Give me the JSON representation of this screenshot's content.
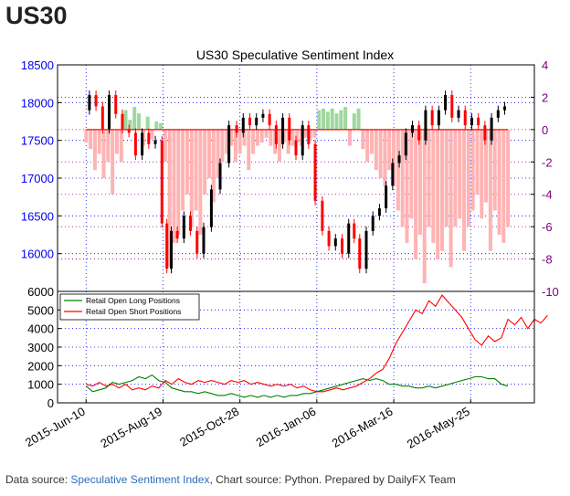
{
  "page": {
    "title": "US30",
    "footer": {
      "prefix": "Data source: ",
      "link": "Speculative Sentiment Index",
      "suffix": ", Chart source: Python. Prepared by DailyFX Team"
    }
  },
  "colors": {
    "price_axis": "#0000ee",
    "ssi_axis": "#800080",
    "long": "#008000",
    "short": "#ff0000",
    "ssi_positive": "#9fd89f",
    "ssi_negative": "#ffb3b3",
    "candle_up": "#000000",
    "candle_down": "#ff0000",
    "grid_blue": "#0000ff",
    "grid_purple": "#800080"
  },
  "chart_data": [
    {
      "type": "candlestick",
      "title": "US30 Speculative Sentiment Index",
      "ylim": [
        15500,
        18500
      ],
      "yticks": [
        16000,
        16500,
        17000,
        17500,
        18000,
        18500
      ],
      "secondary_ylim": [
        -10,
        4
      ],
      "secondary_yticks": [
        -10,
        -8,
        -6,
        -4,
        -2,
        0,
        2,
        4
      ],
      "x_tick_labels": [
        "2015-Jun-10",
        "2015-Aug-19",
        "2015-Oct-28",
        "2016-Jan-06",
        "2016-Mar-16",
        "2016-May-25"
      ],
      "x_ticks_days": [
        0,
        70,
        140,
        210,
        280,
        350
      ],
      "xlim_days": [
        -26,
        408
      ],
      "grid": true,
      "price_close": [
        [
          0,
          17900
        ],
        [
          6,
          18100
        ],
        [
          12,
          17950
        ],
        [
          18,
          17650
        ],
        [
          24,
          18100
        ],
        [
          30,
          17850
        ],
        [
          36,
          17650
        ],
        [
          42,
          17600
        ],
        [
          48,
          17300
        ],
        [
          54,
          17600
        ],
        [
          60,
          17450
        ],
        [
          66,
          17500
        ],
        [
          72,
          16400
        ],
        [
          75,
          15800
        ],
        [
          80,
          16300
        ],
        [
          86,
          16200
        ],
        [
          92,
          16500
        ],
        [
          98,
          16300
        ],
        [
          104,
          16000
        ],
        [
          110,
          16350
        ],
        [
          118,
          16850
        ],
        [
          126,
          17200
        ],
        [
          134,
          17700
        ],
        [
          140,
          17600
        ],
        [
          146,
          17800
        ],
        [
          152,
          17700
        ],
        [
          158,
          17800
        ],
        [
          164,
          17850
        ],
        [
          170,
          17700
        ],
        [
          176,
          17450
        ],
        [
          182,
          17800
        ],
        [
          188,
          17500
        ],
        [
          194,
          17300
        ],
        [
          200,
          17700
        ],
        [
          205,
          17450
        ],
        [
          212,
          16700
        ],
        [
          218,
          16300
        ],
        [
          224,
          16100
        ],
        [
          230,
          16200
        ],
        [
          236,
          16000
        ],
        [
          242,
          16400
        ],
        [
          246,
          16200
        ],
        [
          252,
          15800
        ],
        [
          258,
          16300
        ],
        [
          264,
          16500
        ],
        [
          270,
          16600
        ],
        [
          276,
          16900
        ],
        [
          282,
          17200
        ],
        [
          288,
          17300
        ],
        [
          294,
          17600
        ],
        [
          300,
          17700
        ],
        [
          306,
          17500
        ],
        [
          312,
          17900
        ],
        [
          318,
          17700
        ],
        [
          324,
          17900
        ],
        [
          330,
          18100
        ],
        [
          336,
          17800
        ],
        [
          342,
          17900
        ],
        [
          348,
          17700
        ],
        [
          354,
          17800
        ],
        [
          360,
          17700
        ],
        [
          366,
          17500
        ],
        [
          372,
          17800
        ],
        [
          378,
          17900
        ],
        [
          384,
          17950
        ]
      ],
      "ssi": [
        [
          0,
          -0.8
        ],
        [
          4,
          -1.2
        ],
        [
          8,
          -2.5
        ],
        [
          12,
          -1.5
        ],
        [
          16,
          -3.0
        ],
        [
          20,
          -2.0
        ],
        [
          24,
          -4.0
        ],
        [
          28,
          -1.5
        ],
        [
          32,
          -2.0
        ],
        [
          36,
          1.2
        ],
        [
          40,
          0.6
        ],
        [
          44,
          1.4
        ],
        [
          48,
          1.0
        ],
        [
          52,
          -1.0
        ],
        [
          56,
          0.8
        ],
        [
          60,
          -0.6
        ],
        [
          64,
          0.5
        ],
        [
          68,
          0.4
        ],
        [
          72,
          -2.0
        ],
        [
          76,
          -8.5
        ],
        [
          80,
          -7.0
        ],
        [
          84,
          -6.5
        ],
        [
          88,
          -5.0
        ],
        [
          92,
          -4.0
        ],
        [
          96,
          -6.0
        ],
        [
          100,
          -5.0
        ],
        [
          104,
          -6.5
        ],
        [
          108,
          -4.0
        ],
        [
          112,
          -3.0
        ],
        [
          116,
          -4.5
        ],
        [
          120,
          -3.0
        ],
        [
          124,
          -2.0
        ],
        [
          128,
          -1.5
        ],
        [
          132,
          -1.0
        ],
        [
          136,
          -2.0
        ],
        [
          140,
          -1.5
        ],
        [
          144,
          -1.0
        ],
        [
          148,
          -2.5
        ],
        [
          152,
          -1.5
        ],
        [
          156,
          -1.0
        ],
        [
          160,
          -0.8
        ],
        [
          164,
          -0.5
        ],
        [
          168,
          -1.0
        ],
        [
          172,
          -1.5
        ],
        [
          176,
          -2.0
        ],
        [
          180,
          -0.8
        ],
        [
          184,
          -1.5
        ],
        [
          188,
          -1.0
        ],
        [
          192,
          -0.8
        ],
        [
          196,
          -1.0
        ],
        [
          200,
          -0.5
        ],
        [
          204,
          -0.7
        ],
        [
          208,
          -0.5
        ],
        [
          212,
          1.2
        ],
        [
          216,
          1.3
        ],
        [
          220,
          1.1
        ],
        [
          224,
          1.3
        ],
        [
          228,
          1.0
        ],
        [
          232,
          1.2
        ],
        [
          236,
          1.4
        ],
        [
          240,
          -1.0
        ],
        [
          244,
          1.0
        ],
        [
          248,
          1.3
        ],
        [
          252,
          -1.2
        ],
        [
          256,
          -2.0
        ],
        [
          260,
          -1.5
        ],
        [
          264,
          -2.5
        ],
        [
          268,
          -3.0
        ],
        [
          272,
          -3.5
        ],
        [
          276,
          -2.5
        ],
        [
          280,
          -3.5
        ],
        [
          284,
          -5.0
        ],
        [
          288,
          -6.0
        ],
        [
          292,
          -7.0
        ],
        [
          296,
          -5.5
        ],
        [
          300,
          -8.0
        ],
        [
          304,
          -6.5
        ],
        [
          308,
          -9.5
        ],
        [
          312,
          -6.0
        ],
        [
          316,
          -7.0
        ],
        [
          320,
          -8.0
        ],
        [
          324,
          -7.5
        ],
        [
          328,
          -6.0
        ],
        [
          332,
          -8.5
        ],
        [
          336,
          -6.0
        ],
        [
          340,
          -5.5
        ],
        [
          344,
          -7.5
        ],
        [
          348,
          -6.0
        ],
        [
          352,
          -5.0
        ],
        [
          356,
          -4.0
        ],
        [
          360,
          -5.5
        ],
        [
          364,
          -4.5
        ],
        [
          368,
          -7.5
        ],
        [
          372,
          -5.0
        ],
        [
          376,
          -6.5
        ],
        [
          380,
          -7.0
        ],
        [
          384,
          -6.0
        ]
      ]
    },
    {
      "type": "line",
      "ylim": [
        0,
        6000
      ],
      "yticks": [
        0,
        1000,
        2000,
        3000,
        4000,
        5000,
        6000
      ],
      "legend": "top-left",
      "series": [
        {
          "name": "Retail Open Long Positions",
          "points": [
            [
              0,
              900
            ],
            [
              6,
              600
            ],
            [
              12,
              700
            ],
            [
              18,
              800
            ],
            [
              24,
              1100
            ],
            [
              30,
              1000
            ],
            [
              36,
              1100
            ],
            [
              42,
              1200
            ],
            [
              48,
              1400
            ],
            [
              54,
              1300
            ],
            [
              60,
              1500
            ],
            [
              66,
              1200
            ],
            [
              72,
              1100
            ],
            [
              78,
              800
            ],
            [
              84,
              700
            ],
            [
              90,
              600
            ],
            [
              96,
              600
            ],
            [
              102,
              500
            ],
            [
              108,
              600
            ],
            [
              114,
              500
            ],
            [
              120,
              400
            ],
            [
              126,
              400
            ],
            [
              132,
              500
            ],
            [
              138,
              400
            ],
            [
              144,
              300
            ],
            [
              150,
              400
            ],
            [
              156,
              300
            ],
            [
              162,
              400
            ],
            [
              168,
              300
            ],
            [
              174,
              400
            ],
            [
              180,
              300
            ],
            [
              186,
              400
            ],
            [
              192,
              400
            ],
            [
              198,
              500
            ],
            [
              204,
              500
            ],
            [
              210,
              600
            ],
            [
              216,
              700
            ],
            [
              222,
              800
            ],
            [
              228,
              900
            ],
            [
              234,
              1000
            ],
            [
              240,
              1100
            ],
            [
              246,
              1200
            ],
            [
              252,
              1300
            ],
            [
              258,
              1200
            ],
            [
              264,
              1300
            ],
            [
              270,
              1200
            ],
            [
              276,
              1000
            ],
            [
              282,
              1000
            ],
            [
              288,
              900
            ],
            [
              294,
              900
            ],
            [
              300,
              800
            ],
            [
              306,
              800
            ],
            [
              312,
              900
            ],
            [
              318,
              800
            ],
            [
              324,
              900
            ],
            [
              330,
              1000
            ],
            [
              336,
              1100
            ],
            [
              342,
              1200
            ],
            [
              348,
              1300
            ],
            [
              354,
              1400
            ],
            [
              360,
              1400
            ],
            [
              366,
              1300
            ],
            [
              372,
              1300
            ],
            [
              378,
              1000
            ],
            [
              384,
              900
            ]
          ]
        },
        {
          "name": "Retail Open Short Positions",
          "points": [
            [
              0,
              1000
            ],
            [
              6,
              900
            ],
            [
              12,
              1100
            ],
            [
              18,
              900
            ],
            [
              24,
              1000
            ],
            [
              30,
              800
            ],
            [
              36,
              1000
            ],
            [
              42,
              700
            ],
            [
              48,
              800
            ],
            [
              54,
              700
            ],
            [
              60,
              900
            ],
            [
              66,
              800
            ],
            [
              72,
              1200
            ],
            [
              78,
              1000
            ],
            [
              84,
              1300
            ],
            [
              90,
              1100
            ],
            [
              96,
              1000
            ],
            [
              102,
              1200
            ],
            [
              108,
              1100
            ],
            [
              114,
              1200
            ],
            [
              120,
              1100
            ],
            [
              126,
              1000
            ],
            [
              132,
              1200
            ],
            [
              138,
              1100
            ],
            [
              144,
              1200
            ],
            [
              150,
              1000
            ],
            [
              156,
              1100
            ],
            [
              162,
              1000
            ],
            [
              168,
              900
            ],
            [
              174,
              1000
            ],
            [
              180,
              900
            ],
            [
              186,
              1000
            ],
            [
              192,
              800
            ],
            [
              198,
              900
            ],
            [
              204,
              700
            ],
            [
              210,
              600
            ],
            [
              216,
              600
            ],
            [
              222,
              700
            ],
            [
              228,
              800
            ],
            [
              234,
              700
            ],
            [
              240,
              800
            ],
            [
              246,
              900
            ],
            [
              252,
              1100
            ],
            [
              258,
              1300
            ],
            [
              264,
              1600
            ],
            [
              270,
              1800
            ],
            [
              276,
              2400
            ],
            [
              282,
              3200
            ],
            [
              288,
              3800
            ],
            [
              294,
              4400
            ],
            [
              300,
              5000
            ],
            [
              306,
              4800
            ],
            [
              312,
              5500
            ],
            [
              318,
              5200
            ],
            [
              324,
              5800
            ],
            [
              330,
              5400
            ],
            [
              336,
              5000
            ],
            [
              342,
              4600
            ],
            [
              348,
              4000
            ],
            [
              354,
              3400
            ],
            [
              360,
              3100
            ],
            [
              366,
              3600
            ],
            [
              372,
              3300
            ],
            [
              378,
              3500
            ],
            [
              384,
              4500
            ],
            [
              390,
              4200
            ],
            [
              396,
              4600
            ],
            [
              402,
              4000
            ],
            [
              408,
              4500
            ],
            [
              414,
              4300
            ],
            [
              420,
              4700
            ]
          ]
        }
      ]
    }
  ]
}
